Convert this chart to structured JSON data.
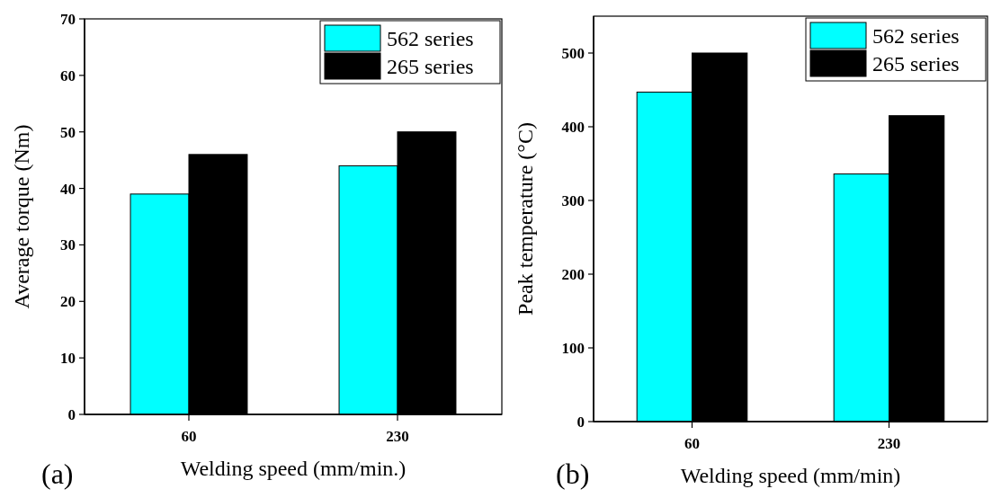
{
  "chart_data": [
    {
      "type": "bar",
      "categories": [
        "60",
        "230"
      ],
      "xlabel": "Welding speed (mm/min.)",
      "ylabel": "Average torque (Nm)",
      "series": [
        {
          "name": "562 series",
          "color": "#00ffff",
          "values": [
            39,
            44
          ]
        },
        {
          "name": "265 series",
          "color": "#000000",
          "values": [
            46,
            50
          ]
        }
      ],
      "ylim": [
        0,
        70
      ],
      "yticks": [
        0,
        10,
        20,
        30,
        40,
        50,
        60,
        70
      ],
      "legend": "top right",
      "annotations": [
        "(a)"
      ]
    },
    {
      "type": "bar",
      "categories": [
        "60",
        "230"
      ],
      "xlabel": "Welding speed (mm/min)",
      "ylabel": "Peak temperature (°C)",
      "series": [
        {
          "name": "562 series",
          "color": "#00ffff",
          "values": [
            447,
            336
          ]
        },
        {
          "name": "265 series",
          "color": "#000000",
          "values": [
            500,
            415
          ]
        }
      ],
      "ylim": [
        0,
        550
      ],
      "yticks": [
        0,
        100,
        200,
        300,
        400,
        500
      ],
      "legend": "top right",
      "annotations": [
        "(b)"
      ]
    }
  ]
}
